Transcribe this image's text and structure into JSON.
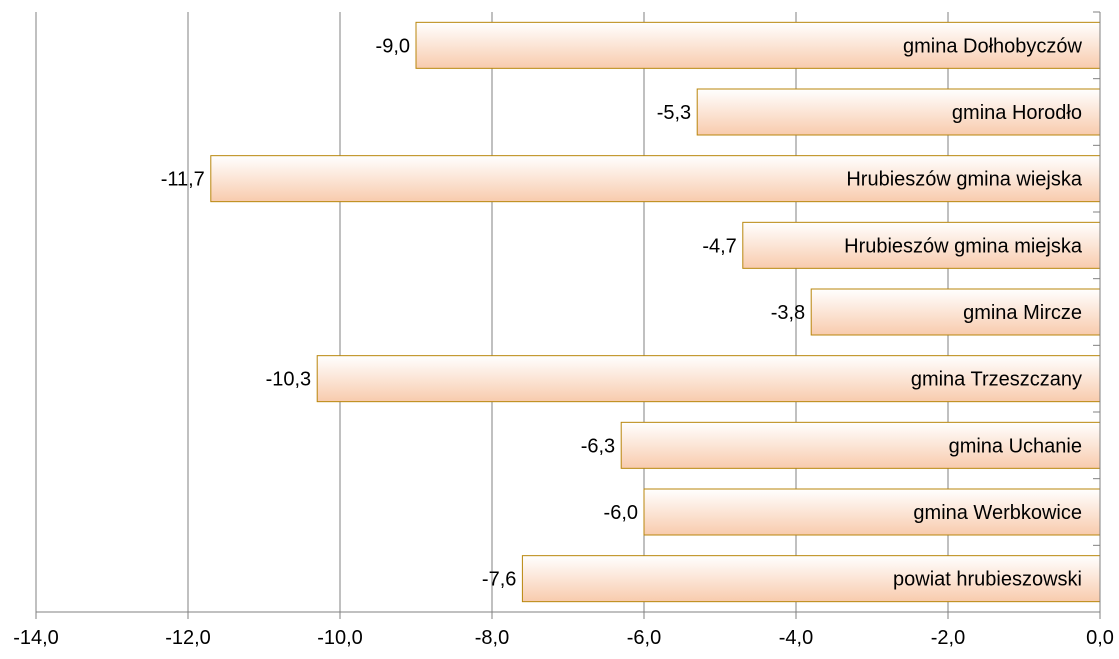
{
  "chart_data": {
    "type": "bar",
    "orientation": "horizontal",
    "categories": [
      "gmina Dołhobyczów",
      "gmina Horodło",
      "Hrubieszów gmina wiejska",
      "Hrubieszów gmina miejska",
      "gmina Mircze",
      "gmina Trzeszczany",
      "gmina Uchanie",
      "gmina Werbkowice",
      "powiat hrubieszowski"
    ],
    "values": [
      -9.0,
      -5.3,
      -11.7,
      -4.7,
      -3.8,
      -10.3,
      -6.3,
      -6.0,
      -7.6
    ],
    "value_labels": [
      "-9,0",
      "-5,3",
      "-11,7",
      "-4,7",
      "-3,8",
      "-10,3",
      "-6,3",
      "-6,0",
      "-7,6"
    ],
    "xlim": [
      -14,
      0
    ],
    "x_ticks": [
      -14,
      -12,
      -10,
      -8,
      -6,
      -4,
      -2,
      0
    ],
    "x_tick_labels": [
      "-14,0",
      "-12,0",
      "-10,0",
      "-8,0",
      "-6,0",
      "-4,0",
      "-2,0",
      "0,0"
    ],
    "grid": "vertical",
    "colors": {
      "bar_fill_light": "#ffffff",
      "bar_fill_dark": "#f8cbad",
      "bar_stroke": "#b8860b",
      "grid": "#808080",
      "axis": "#808080"
    }
  }
}
